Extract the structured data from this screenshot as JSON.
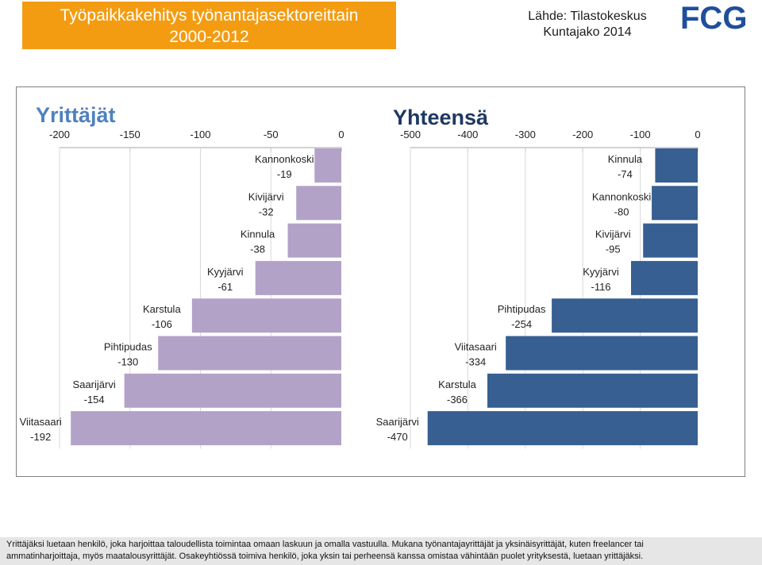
{
  "header": {
    "title_line1": "Työpaikkakehitys työnantajasektoreittain",
    "title_line2": "2000-2012",
    "source_line1": "Lähde: Tilastokeskus",
    "source_line2": "Kuntajako 2014",
    "logo_text": "FCG"
  },
  "colors": {
    "orange": "#f39c12",
    "purple": "#b3a2c7",
    "blue": "#375f91",
    "text": "#1c1c1c"
  },
  "chart_data": [
    {
      "type": "bar",
      "orientation": "horizontal",
      "title": "Yrittäjät",
      "color": "#b3a2c7",
      "title_color": "#4f81bd",
      "xlim": [
        -200,
        0
      ],
      "ticks": [
        -200,
        -150,
        -100,
        -50,
        0
      ],
      "tick_labels": [
        "-200",
        "-150",
        "-100",
        "-50",
        "0"
      ],
      "categories": [
        "Kannonkoski",
        "Kivijärvi",
        "Kinnula",
        "Kyyjärvi",
        "Karstula",
        "Pihtipudas",
        "Saarijärvi",
        "Viitasaari"
      ],
      "values": [
        -19,
        -32,
        -38,
        -61,
        -106,
        -130,
        -154,
        -192
      ]
    },
    {
      "type": "bar",
      "orientation": "horizontal",
      "title": "Yhteensä",
      "color": "#375f91",
      "title_color": "#1f3864",
      "xlim": [
        -500,
        0
      ],
      "ticks": [
        -500,
        -400,
        -300,
        -200,
        -100,
        0
      ],
      "tick_labels": [
        "-500",
        "-400",
        "-300",
        "-200",
        "-100",
        "0"
      ],
      "categories": [
        "Kinnula",
        "Kannonkoski",
        "Kivijärvi",
        "Kyyjärvi",
        "Pihtipudas",
        "Viitasaari",
        "Karstula",
        "Saarijärvi"
      ],
      "values": [
        -74,
        -80,
        -95,
        -116,
        -254,
        -334,
        -366,
        -470
      ]
    }
  ],
  "footnote": {
    "line1": "Yrittäjäksi luetaan henkilö, joka harjoittaa taloudellista toimintaa omaan laskuun ja omalla vastuulla. Mukana työnantajayrittäjät ja yksinäisyrittäjät, kuten freelancer tai",
    "line2": "ammatinharjoittaja, myös maatalousyrittäjät. Osakeyhtiössä toimiva henkilö, joka yksin tai perheensä kanssa omistaa vähintään puolet yrityksestä, luetaan yrittäjäksi."
  }
}
